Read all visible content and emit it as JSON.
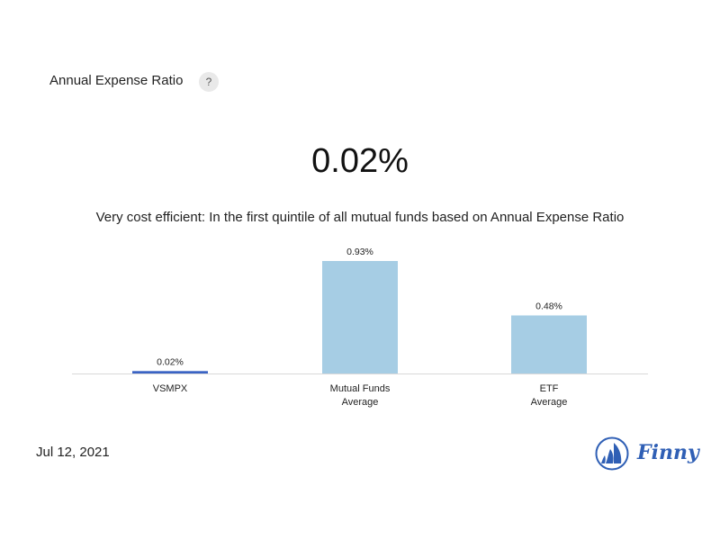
{
  "header": {
    "title": "Annual Expense Ratio",
    "help_label": "?"
  },
  "summary": {
    "value": "0.02%",
    "description": "Very cost efficient: In the first quintile of all mutual funds based on Annual Expense Ratio"
  },
  "footer": {
    "date": "Jul 12, 2021",
    "logo_text": "Finny"
  },
  "colors": {
    "highlight_bar": "#3a63c4",
    "comparison_bar": "#a6cde4",
    "axis_line": "#d9d9d9",
    "brand": "#2f5fb5"
  },
  "chart_data": {
    "type": "bar",
    "categories": [
      [
        "VSMPX"
      ],
      [
        "Mutual Funds",
        "Average"
      ],
      [
        "ETF",
        "Average"
      ]
    ],
    "values": [
      0.02,
      0.93,
      0.48
    ],
    "value_labels": [
      "0.02%",
      "0.93%",
      "0.48%"
    ],
    "ylim": [
      0,
      0.93
    ],
    "grid": false,
    "highlight_index": 0
  }
}
